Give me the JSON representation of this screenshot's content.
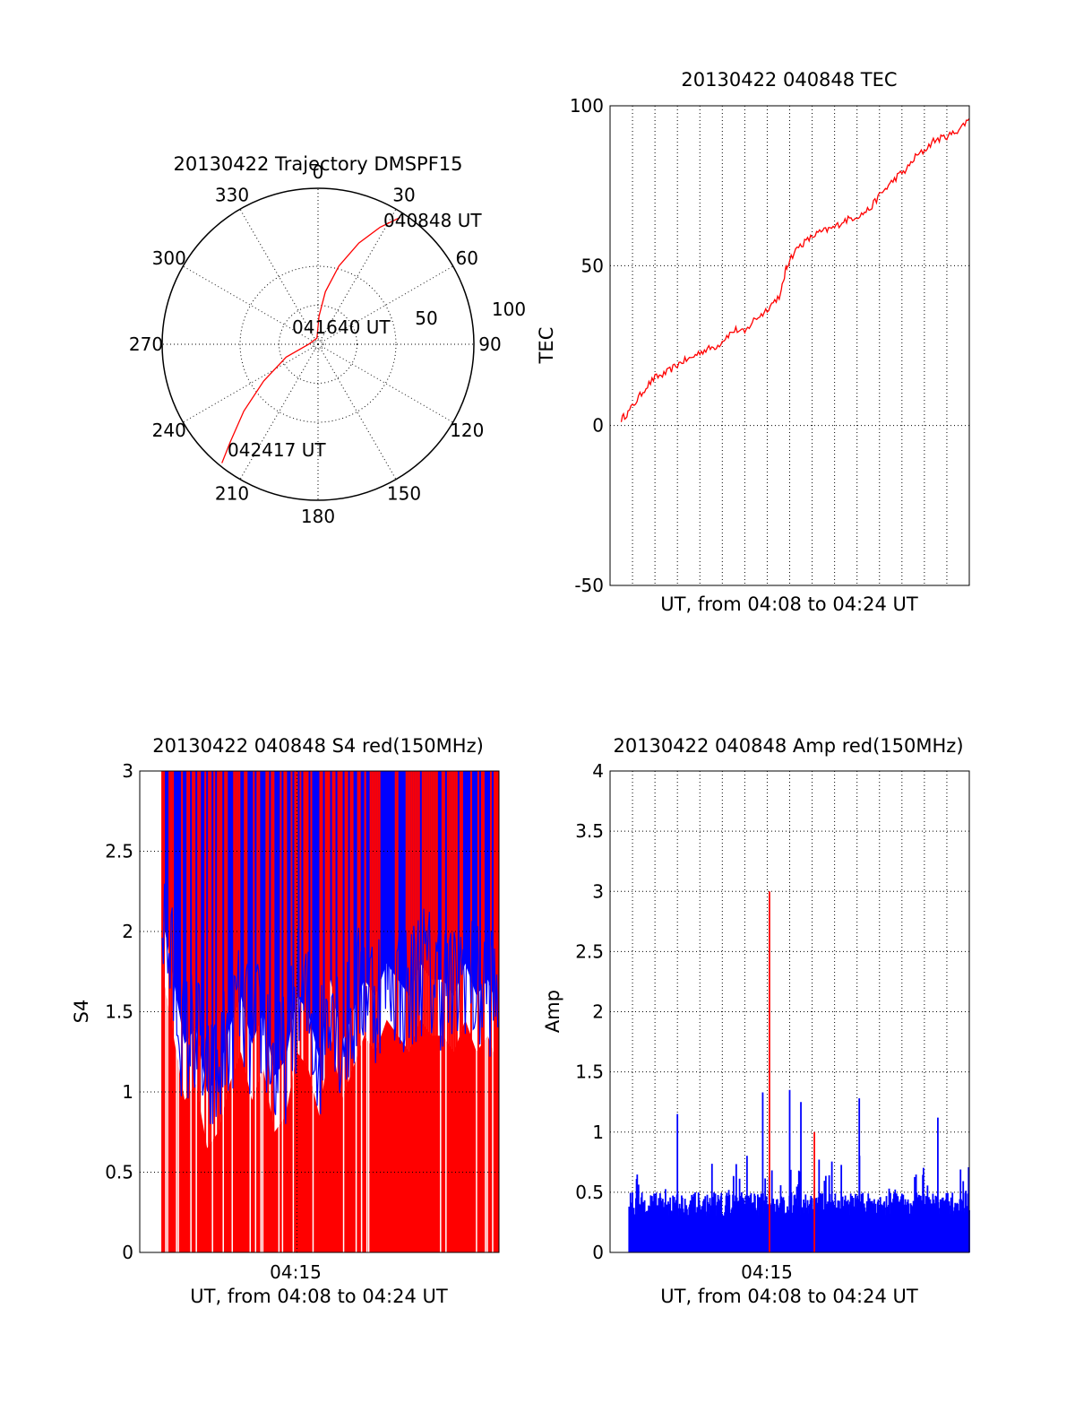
{
  "chart_data": [
    {
      "type": "polar",
      "title": "20130422 Trajectory DMSPF15",
      "azimuth_labels": [
        "0",
        "30",
        "60",
        "90",
        "120",
        "150",
        "180",
        "210",
        "240",
        "270",
        "300",
        "330"
      ],
      "radial_labels": [
        "50",
        "100"
      ],
      "r_max": 100,
      "colors": {
        "track": "#ff0000",
        "axes": "#000000"
      },
      "track": [
        [
          33,
          97
        ],
        [
          28,
          85
        ],
        [
          22,
          70
        ],
        [
          15,
          52
        ],
        [
          8,
          34
        ],
        [
          2,
          18
        ],
        [
          350,
          4
        ],
        [
          270,
          6
        ],
        [
          248,
          22
        ],
        [
          236,
          42
        ],
        [
          228,
          64
        ],
        [
          222,
          84
        ],
        [
          219,
          98
        ]
      ],
      "annotations": [
        {
          "text": "040848 UT",
          "az": 33,
          "r": 97
        },
        {
          "text": "041640 UT",
          "az": 300,
          "r": 12
        },
        {
          "text": "042417 UT",
          "az": 219,
          "r": 98
        }
      ]
    },
    {
      "type": "line",
      "title": "20130422 040848 TEC",
      "xlabel": "UT, from 04:08 to 04:24 UT",
      "ylabel": "TEC",
      "ylim": [
        -50,
        100
      ],
      "yticks": [
        "-50",
        "0",
        "50",
        "100"
      ],
      "xlim_min": [
        0,
        16
      ],
      "grid": true,
      "series": [
        {
          "color": "#ff0000",
          "x": [
            0.5,
            0.8,
            1.2,
            1.6,
            2.0,
            2.4,
            2.8,
            3.2,
            3.6,
            4.0,
            4.4,
            4.8,
            5.2,
            5.6,
            6.0,
            6.4,
            6.8,
            7.2,
            7.6,
            7.8,
            8.0,
            8.4,
            8.8,
            9.2,
            9.6,
            10.0,
            10.4,
            10.8,
            11.2,
            11.6,
            12.0,
            12.4,
            12.8,
            13.2,
            13.6,
            14.0,
            14.4,
            14.8,
            15.2,
            15.6,
            16.0
          ],
          "y": [
            2,
            4,
            8,
            12,
            15,
            16,
            18,
            20,
            21,
            23,
            24,
            25,
            28,
            30,
            29,
            33,
            35,
            38,
            41,
            48,
            52,
            56,
            58,
            60,
            61,
            62,
            64,
            65,
            66,
            68,
            72,
            75,
            78,
            80,
            84,
            86,
            89,
            90,
            91,
            93,
            96
          ]
        }
      ]
    },
    {
      "type": "bar",
      "title": "20130422 040848 S4 red(150MHz)",
      "xlabel": "UT, from 04:08 to 04:24 UT",
      "ylabel": "S4",
      "ylim": [
        0,
        3
      ],
      "yticks": [
        "0",
        "0.5",
        "1",
        "1.5",
        "2",
        "2.5",
        "3"
      ],
      "xticks": [
        {
          "x": 7,
          "label": "04:15"
        }
      ],
      "xlim_min": [
        0,
        16
      ],
      "colors": {
        "red_series": "#ff0000",
        "blue_series": "#0000ff"
      },
      "envelope": {
        "x": [
          1,
          1.5,
          2,
          2.5,
          3,
          3.5,
          4,
          4.5,
          5,
          5.5,
          6,
          6.5,
          7,
          7.5,
          8,
          8.5,
          9,
          9.5,
          10,
          10.5,
          11,
          11.5,
          12,
          12.5,
          13,
          13.5,
          14,
          14.5,
          15,
          15.5,
          16
        ],
        "y": [
          2.1,
          1.7,
          1.3,
          1.4,
          1.0,
          1.1,
          1.4,
          1.6,
          1.3,
          1.5,
          1.1,
          1.2,
          1.6,
          1.5,
          1.2,
          1.7,
          1.3,
          1.5,
          1.7,
          1.6,
          1.8,
          1.7,
          1.6,
          1.8,
          1.7,
          1.7,
          1.6,
          1.8,
          1.6,
          1.7,
          1.5
        ]
      }
    },
    {
      "type": "bar",
      "title": "20130422 040848 Amp red(150MHz)",
      "xlabel": "UT, from 04:08 to 04:24 UT",
      "ylabel": "Amp",
      "ylim": [
        0,
        4
      ],
      "yticks": [
        "0",
        "0.5",
        "1",
        "1.5",
        "2",
        "2.5",
        "3",
        "3.5",
        "4"
      ],
      "xticks": [
        {
          "x": 7,
          "label": "04:15"
        }
      ],
      "xlim_min": [
        0,
        16
      ],
      "colors": {
        "red_series": "#ff0000",
        "blue_series": "#0000ff"
      },
      "peaks": [
        {
          "x": 3.0,
          "y": 1.15,
          "color": "#0000ff"
        },
        {
          "x": 6.8,
          "y": 1.33,
          "color": "#0000ff"
        },
        {
          "x": 7.1,
          "y": 3.0,
          "color": "#ff0000"
        },
        {
          "x": 8.0,
          "y": 1.35,
          "color": "#0000ff"
        },
        {
          "x": 8.5,
          "y": 1.25,
          "color": "#0000ff"
        },
        {
          "x": 9.1,
          "y": 1.0,
          "color": "#ff0000"
        },
        {
          "x": 11.1,
          "y": 1.28,
          "color": "#0000ff"
        },
        {
          "x": 14.6,
          "y": 1.12,
          "color": "#0000ff"
        }
      ]
    }
  ]
}
